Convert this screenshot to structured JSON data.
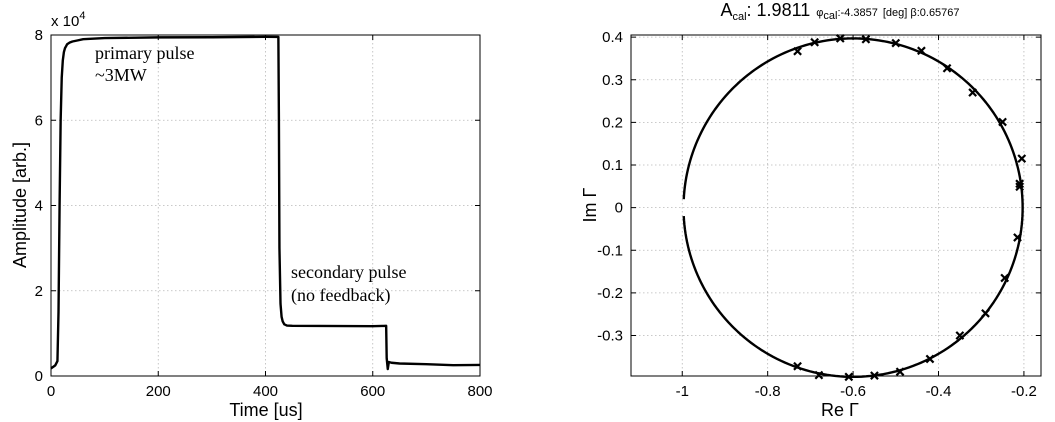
{
  "chart_data": [
    {
      "type": "line",
      "title": "",
      "xlabel": "Time [us]",
      "ylabel": "Amplitude [arb.]",
      "y_multiplier": "x 10",
      "y_multiplier_exp": "4",
      "xlim": [
        0,
        800
      ],
      "ylim": [
        0,
        80000
      ],
      "xticks": [
        0,
        200,
        400,
        600,
        800
      ],
      "ytick_labels": [
        "0",
        "2",
        "4",
        "6",
        "8"
      ],
      "yticks": [
        0,
        20000,
        40000,
        60000,
        80000
      ],
      "grid": true,
      "annotations": {
        "primary_line1": "primary pulse",
        "primary_line2": "~3MW",
        "secondary_line1": "secondary pulse",
        "secondary_line2": "(no feedback)"
      },
      "series": [
        {
          "x": [
            0,
            8,
            12,
            14,
            16,
            18,
            20,
            22,
            24,
            26,
            28,
            30,
            35,
            40,
            50,
            60,
            100,
            200,
            300,
            400,
            424,
            425,
            426,
            428,
            430,
            432,
            435,
            440,
            450,
            500,
            550,
            600,
            620,
            625,
            626,
            628,
            630,
            635,
            650,
            700,
            750,
            800
          ],
          "y": [
            1800,
            2500,
            3500,
            15000,
            40000,
            60000,
            70000,
            74000,
            76000,
            77000,
            77500,
            78000,
            78400,
            78600,
            78800,
            79000,
            79200,
            79300,
            79300,
            79400,
            79400,
            60000,
            30000,
            17000,
            14000,
            13000,
            12300,
            12000,
            11900,
            11800,
            11700,
            11600,
            11600,
            11600,
            4000,
            1500,
            3200,
            3100,
            3000,
            2900,
            2700,
            2600
          ]
        }
      ]
    },
    {
      "type": "scatter",
      "title_main": "A",
      "title_main_sub": "cal",
      "title_main_value": ": 1.9811",
      "title_phi": "φ",
      "title_phi_sub": "cal",
      "title_phi_value": ":-4.3857",
      "title_deg": "[deg] β:0.65767",
      "xlabel": "Re Γ",
      "ylabel": "Im Γ",
      "xlim": [
        -1.12,
        -0.16
      ],
      "ylim": [
        -0.395,
        0.405
      ],
      "xticks": [
        -1,
        -0.8,
        -0.6,
        -0.4,
        -0.2
      ],
      "xtick_labels": [
        "-1",
        "-0.8",
        "-0.6",
        "-0.4",
        "-0.2"
      ],
      "yticks": [
        0.4,
        0.3,
        0.2,
        0.1,
        0,
        -0.1,
        -0.2,
        -0.3
      ],
      "ytick_labels": [
        "0.4",
        "0.3",
        "0.2",
        "0.1",
        "0",
        "-0.1",
        "-0.2",
        "-0.3"
      ],
      "grid": true,
      "circle": {
        "center": [
          -0.6,
          0.0
        ],
        "radius": 0.397
      },
      "markers": {
        "x": [
          -0.73,
          -0.69,
          -0.63,
          -0.57,
          -0.5,
          -0.44,
          -0.38,
          -0.32,
          -0.25,
          -0.205,
          -0.21,
          -0.21,
          -0.215,
          -0.245,
          -0.29,
          -0.35,
          -0.42,
          -0.49,
          -0.55,
          -0.61,
          -0.68,
          -0.73
        ],
        "y": [
          0.367,
          0.388,
          0.397,
          0.395,
          0.386,
          0.368,
          0.327,
          0.27,
          0.201,
          0.115,
          0.056,
          0.049,
          -0.07,
          -0.165,
          -0.248,
          -0.3,
          -0.355,
          -0.385,
          -0.394,
          -0.397,
          -0.393,
          -0.372
        ]
      }
    }
  ]
}
